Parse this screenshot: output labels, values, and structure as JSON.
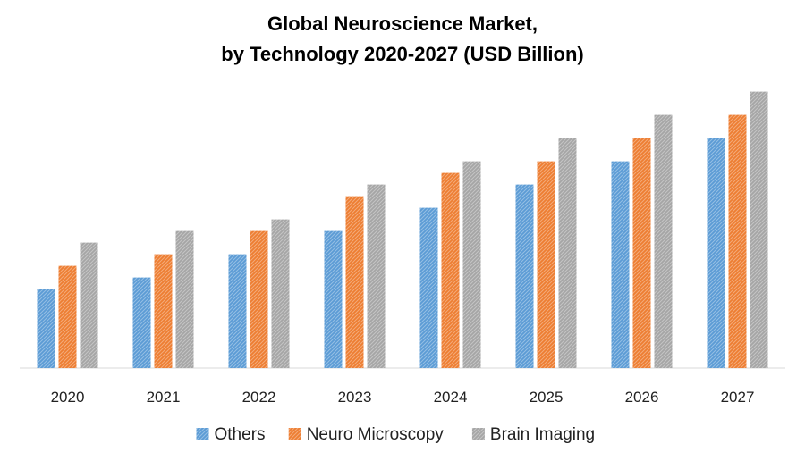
{
  "chart_data": {
    "type": "bar",
    "title": "Global Neuroscience Market,",
    "subtitle": "by Technology 2020-2027 (USD Billion)",
    "categories": [
      "2020",
      "2021",
      "2022",
      "2023",
      "2024",
      "2025",
      "2026",
      "2027"
    ],
    "series": [
      {
        "name": "Others",
        "color": "#5b9bd5",
        "values": [
          3.4,
          3.9,
          4.9,
          5.9,
          6.9,
          7.9,
          8.9,
          9.9
        ]
      },
      {
        "name": "Neuro Microscopy",
        "color": "#ed7d31",
        "values": [
          4.4,
          4.9,
          5.9,
          7.4,
          8.4,
          8.9,
          9.9,
          10.9
        ]
      },
      {
        "name": "Brain Imaging",
        "color": "#a5a5a5",
        "values": [
          5.4,
          5.9,
          6.4,
          7.9,
          8.9,
          9.9,
          10.9,
          11.9
        ]
      }
    ],
    "ylim": [
      0,
      12
    ],
    "legend_position": "bottom",
    "grid": false,
    "pattern": "hatched"
  }
}
